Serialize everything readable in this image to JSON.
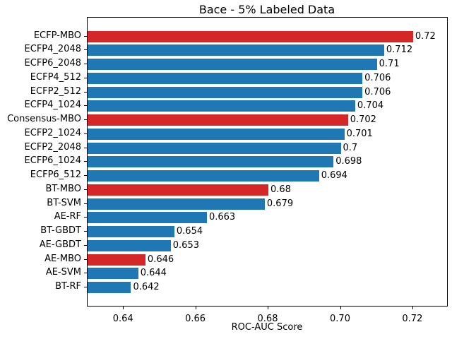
{
  "chart_data": {
    "type": "bar",
    "orientation": "horizontal",
    "title": "Bace - 5% Labeled Data",
    "xlabel": "ROC-AUC Score",
    "ylabel": "",
    "categories": [
      "ECFP-MBO",
      "ECFP4_2048",
      "ECFP6_2048",
      "ECFP4_512",
      "ECFP2_512",
      "ECFP4_1024",
      "Consensus-MBO",
      "ECFP2_1024",
      "ECFP2_2048",
      "ECFP6_1024",
      "ECFP6_512",
      "BT-MBO",
      "BT-SVM",
      "AE-RF",
      "BT-GBDT",
      "AE-GBDT",
      "AE-MBO",
      "AE-SVM",
      "BT-RF"
    ],
    "values": [
      0.72,
      0.712,
      0.71,
      0.706,
      0.706,
      0.704,
      0.702,
      0.701,
      0.7,
      0.698,
      0.694,
      0.68,
      0.679,
      0.663,
      0.654,
      0.653,
      0.646,
      0.644,
      0.642
    ],
    "value_labels": [
      "0.72",
      "0.712",
      "0.71",
      "0.706",
      "0.706",
      "0.704",
      "0.702",
      "0.701",
      "0.7",
      "0.698",
      "0.694",
      "0.68",
      "0.679",
      "0.663",
      "0.654",
      "0.653",
      "0.646",
      "0.644",
      "0.642"
    ],
    "bar_colors": [
      "#d62728",
      "#1f77b4",
      "#1f77b4",
      "#1f77b4",
      "#1f77b4",
      "#1f77b4",
      "#d62728",
      "#1f77b4",
      "#1f77b4",
      "#1f77b4",
      "#1f77b4",
      "#d62728",
      "#1f77b4",
      "#1f77b4",
      "#1f77b4",
      "#1f77b4",
      "#d62728",
      "#1f77b4",
      "#1f77b4"
    ],
    "highlight_color": "#d62728",
    "default_color": "#1f77b4",
    "highlighted_categories": [
      "ECFP-MBO",
      "Consensus-MBO",
      "BT-MBO",
      "AE-MBO"
    ],
    "xlim": [
      0.63,
      0.7294
    ],
    "xticks": [
      0.64,
      0.66,
      0.68,
      0.7,
      0.72
    ],
    "xtick_labels": [
      "0.64",
      "0.66",
      "0.68",
      "0.70",
      "0.72"
    ],
    "grid": false,
    "legend": "none"
  }
}
